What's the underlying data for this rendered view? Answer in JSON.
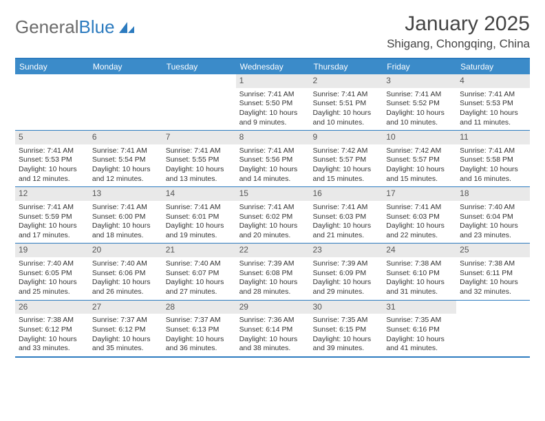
{
  "logo": {
    "text1": "General",
    "text2": "Blue"
  },
  "title": "January 2025",
  "location": "Shigang, Chongqing, China",
  "dows": [
    "Sunday",
    "Monday",
    "Tuesday",
    "Wednesday",
    "Thursday",
    "Friday",
    "Saturday"
  ],
  "colors": {
    "header_bg": "#3b8bc9",
    "border": "#2c7bbf",
    "daynum_bg": "#e9e9e9"
  },
  "weeks": [
    [
      {
        "n": "",
        "empty": true
      },
      {
        "n": "",
        "empty": true
      },
      {
        "n": "",
        "empty": true
      },
      {
        "n": "1",
        "sr": "7:41 AM",
        "ss": "5:50 PM",
        "dl": "10 hours and 9 minutes."
      },
      {
        "n": "2",
        "sr": "7:41 AM",
        "ss": "5:51 PM",
        "dl": "10 hours and 10 minutes."
      },
      {
        "n": "3",
        "sr": "7:41 AM",
        "ss": "5:52 PM",
        "dl": "10 hours and 10 minutes."
      },
      {
        "n": "4",
        "sr": "7:41 AM",
        "ss": "5:53 PM",
        "dl": "10 hours and 11 minutes."
      }
    ],
    [
      {
        "n": "5",
        "sr": "7:41 AM",
        "ss": "5:53 PM",
        "dl": "10 hours and 12 minutes."
      },
      {
        "n": "6",
        "sr": "7:41 AM",
        "ss": "5:54 PM",
        "dl": "10 hours and 12 minutes."
      },
      {
        "n": "7",
        "sr": "7:41 AM",
        "ss": "5:55 PM",
        "dl": "10 hours and 13 minutes."
      },
      {
        "n": "8",
        "sr": "7:41 AM",
        "ss": "5:56 PM",
        "dl": "10 hours and 14 minutes."
      },
      {
        "n": "9",
        "sr": "7:42 AM",
        "ss": "5:57 PM",
        "dl": "10 hours and 15 minutes."
      },
      {
        "n": "10",
        "sr": "7:42 AM",
        "ss": "5:57 PM",
        "dl": "10 hours and 15 minutes."
      },
      {
        "n": "11",
        "sr": "7:41 AM",
        "ss": "5:58 PM",
        "dl": "10 hours and 16 minutes."
      }
    ],
    [
      {
        "n": "12",
        "sr": "7:41 AM",
        "ss": "5:59 PM",
        "dl": "10 hours and 17 minutes."
      },
      {
        "n": "13",
        "sr": "7:41 AM",
        "ss": "6:00 PM",
        "dl": "10 hours and 18 minutes."
      },
      {
        "n": "14",
        "sr": "7:41 AM",
        "ss": "6:01 PM",
        "dl": "10 hours and 19 minutes."
      },
      {
        "n": "15",
        "sr": "7:41 AM",
        "ss": "6:02 PM",
        "dl": "10 hours and 20 minutes."
      },
      {
        "n": "16",
        "sr": "7:41 AM",
        "ss": "6:03 PM",
        "dl": "10 hours and 21 minutes."
      },
      {
        "n": "17",
        "sr": "7:41 AM",
        "ss": "6:03 PM",
        "dl": "10 hours and 22 minutes."
      },
      {
        "n": "18",
        "sr": "7:40 AM",
        "ss": "6:04 PM",
        "dl": "10 hours and 23 minutes."
      }
    ],
    [
      {
        "n": "19",
        "sr": "7:40 AM",
        "ss": "6:05 PM",
        "dl": "10 hours and 25 minutes."
      },
      {
        "n": "20",
        "sr": "7:40 AM",
        "ss": "6:06 PM",
        "dl": "10 hours and 26 minutes."
      },
      {
        "n": "21",
        "sr": "7:40 AM",
        "ss": "6:07 PM",
        "dl": "10 hours and 27 minutes."
      },
      {
        "n": "22",
        "sr": "7:39 AM",
        "ss": "6:08 PM",
        "dl": "10 hours and 28 minutes."
      },
      {
        "n": "23",
        "sr": "7:39 AM",
        "ss": "6:09 PM",
        "dl": "10 hours and 29 minutes."
      },
      {
        "n": "24",
        "sr": "7:38 AM",
        "ss": "6:10 PM",
        "dl": "10 hours and 31 minutes."
      },
      {
        "n": "25",
        "sr": "7:38 AM",
        "ss": "6:11 PM",
        "dl": "10 hours and 32 minutes."
      }
    ],
    [
      {
        "n": "26",
        "sr": "7:38 AM",
        "ss": "6:12 PM",
        "dl": "10 hours and 33 minutes."
      },
      {
        "n": "27",
        "sr": "7:37 AM",
        "ss": "6:12 PM",
        "dl": "10 hours and 35 minutes."
      },
      {
        "n": "28",
        "sr": "7:37 AM",
        "ss": "6:13 PM",
        "dl": "10 hours and 36 minutes."
      },
      {
        "n": "29",
        "sr": "7:36 AM",
        "ss": "6:14 PM",
        "dl": "10 hours and 38 minutes."
      },
      {
        "n": "30",
        "sr": "7:35 AM",
        "ss": "6:15 PM",
        "dl": "10 hours and 39 minutes."
      },
      {
        "n": "31",
        "sr": "7:35 AM",
        "ss": "6:16 PM",
        "dl": "10 hours and 41 minutes."
      },
      {
        "n": "",
        "empty": true
      }
    ]
  ],
  "labels": {
    "sunrise": "Sunrise:",
    "sunset": "Sunset:",
    "daylight": "Daylight:"
  }
}
